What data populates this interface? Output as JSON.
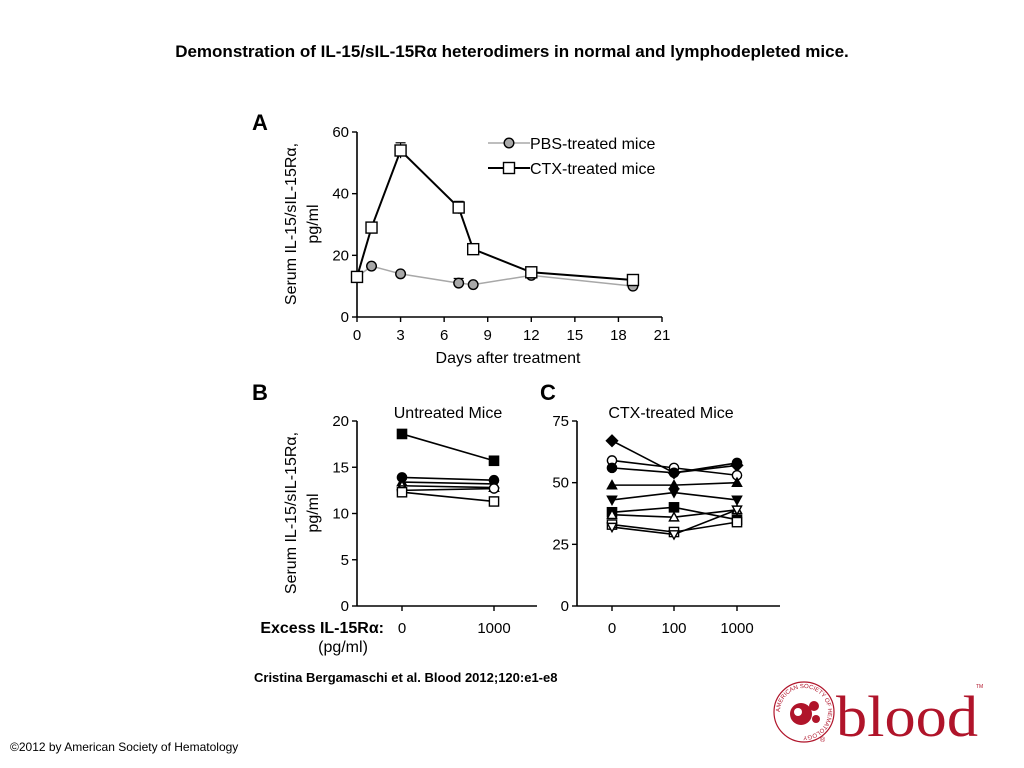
{
  "slide_title": "Demonstration of IL-15/sIL-15Rα heterodimers in normal and lymphodepleted mice.",
  "citation": "Cristina Bergamaschi et al. Blood 2012;120:e1-e8",
  "copyright": "©2012 by American Society of Hematology",
  "logo": {
    "wordmark": "blood",
    "ring_text": "AMERICAN SOCIETY OF HEMATOLOGY",
    "registered": "®",
    "tm": "TM",
    "color": "#b0142a"
  },
  "shared": {
    "excess_label": "Excess IL-15Rα:",
    "excess_unit": "(pg/ml)"
  },
  "chart_data": [
    {
      "panel": "A",
      "type": "line",
      "xlabel": "Days after treatment",
      "ylabel_line1": "Serum IL-15/sIL-15Rα,",
      "ylabel_line2": "pg/ml",
      "xlim": [
        0,
        21
      ],
      "ylim": [
        0,
        60
      ],
      "xticks": [
        "0",
        "3",
        "6",
        "9",
        "12",
        "15",
        "18",
        "21"
      ],
      "yticks": [
        "0",
        "20",
        "40",
        "60"
      ],
      "legend_position": "top-right",
      "series": [
        {
          "name": "PBS-treated mice",
          "marker": "circle-filled-gray",
          "line_color": "#a8a8a8",
          "points": [
            {
              "x": 0,
              "y": 13,
              "err": 0
            },
            {
              "x": 1,
              "y": 16.5,
              "err": 0
            },
            {
              "x": 3,
              "y": 14,
              "err": 0
            },
            {
              "x": 7,
              "y": 11,
              "err": 1.5
            },
            {
              "x": 8,
              "y": 10.5,
              "err": 0
            },
            {
              "x": 12,
              "y": 13.5,
              "err": 0
            },
            {
              "x": 19,
              "y": 10,
              "err": 0
            }
          ]
        },
        {
          "name": "CTX-treated mice",
          "marker": "square-open",
          "line_color": "#000000",
          "points": [
            {
              "x": 0,
              "y": 13,
              "err": 0
            },
            {
              "x": 1,
              "y": 29,
              "err": 0
            },
            {
              "x": 3,
              "y": 54,
              "err": 2.5
            },
            {
              "x": 7,
              "y": 35.5,
              "err": 2
            },
            {
              "x": 8,
              "y": 22,
              "err": 0
            },
            {
              "x": 12,
              "y": 14.5,
              "err": 0
            },
            {
              "x": 19,
              "y": 12,
              "err": 0
            }
          ]
        }
      ]
    },
    {
      "panel": "B",
      "type": "line",
      "subtitle": "Untreated Mice",
      "ylabel_line1": "Serum IL-15/sIL-15Rα,",
      "ylabel_line2": "pg/ml",
      "categories": [
        "0",
        "1000"
      ],
      "ylim": [
        0,
        20
      ],
      "yticks": [
        "0",
        "5",
        "10",
        "15",
        "20"
      ],
      "series": [
        {
          "marker": "square-filled",
          "values": [
            18.6,
            15.7
          ]
        },
        {
          "marker": "circle-filled",
          "values": [
            13.9,
            13.6
          ]
        },
        {
          "marker": "triangle-filled",
          "values": [
            13.4,
            13.2
          ]
        },
        {
          "marker": "triangle-open",
          "values": [
            13.0,
            12.8
          ]
        },
        {
          "marker": "circle-open",
          "values": [
            12.5,
            12.7
          ]
        },
        {
          "marker": "square-open",
          "values": [
            12.3,
            11.3
          ]
        }
      ]
    },
    {
      "panel": "C",
      "type": "line",
      "subtitle": "CTX-treated Mice",
      "categories": [
        "0",
        "100",
        "1000"
      ],
      "ylim": [
        0,
        75
      ],
      "yticks": [
        "0",
        "25",
        "50",
        "75"
      ],
      "series": [
        {
          "marker": "diamond-filled",
          "values": [
            67,
            54,
            57
          ]
        },
        {
          "marker": "circle-open",
          "values": [
            59,
            56,
            53
          ]
        },
        {
          "marker": "circle-filled",
          "values": [
            56,
            54,
            58
          ]
        },
        {
          "marker": "triangle-filled",
          "values": [
            49,
            49,
            50
          ]
        },
        {
          "marker": "triangle-down-filled",
          "values": [
            43,
            46,
            43
          ]
        },
        {
          "marker": "square-filled",
          "values": [
            38,
            40,
            35
          ]
        },
        {
          "marker": "triangle-open",
          "values": [
            37,
            36,
            39
          ]
        },
        {
          "marker": "square-open",
          "values": [
            33,
            30,
            34
          ]
        },
        {
          "marker": "triangle-down-open",
          "values": [
            32,
            29,
            39
          ]
        }
      ]
    }
  ]
}
